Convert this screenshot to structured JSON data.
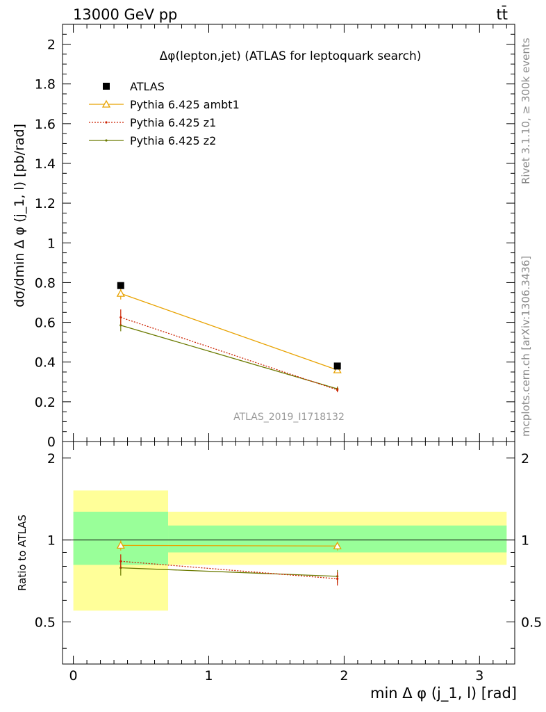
{
  "header": {
    "left": "13000 GeV pp",
    "right": "tt̄"
  },
  "side": {
    "rivet": "Rivet 3.1.10, ≥ 300k events",
    "mcplots": "mcplots.cern.ch [arXiv:1306.3436]"
  },
  "colors": {
    "atlas": "#000000",
    "ambt1": "#e8a200",
    "z1": "#cc2200",
    "z2": "#6b7a00",
    "band_inner": "#99ff99",
    "band_outer": "#ffff99"
  },
  "chart_data": [
    {
      "type": "scatter",
      "title": "Δφ(lepton,jet) (ATLAS for leptoquark search)",
      "ylabel": "dσ/dmin Δ φ (j_1, l) [pb/rad]",
      "watermark": "ATLAS_2019_I1718132",
      "xlim": [
        -0.08,
        3.26
      ],
      "ylim": [
        0,
        2.1
      ],
      "yticks": [
        0.2,
        0.4,
        0.6,
        0.8,
        1,
        1.2,
        1.4,
        1.6,
        1.8,
        2
      ],
      "ytick_labels": [
        "0.2",
        "0.4",
        "0.6",
        "0.8",
        "1",
        "1.2",
        "1.4",
        "1.6",
        "1.8",
        "2"
      ],
      "bottom_label": "0",
      "legend_position": "top-left",
      "series": [
        {
          "name": "ATLAS",
          "style": "data",
          "x": [
            0.35,
            1.95
          ],
          "y": [
            0.785,
            0.38
          ],
          "err": [
            0.012,
            0.008
          ]
        },
        {
          "name": "Pythia 6.425 ambt1",
          "style": "ambt1",
          "x": [
            0.35,
            1.95
          ],
          "y": [
            0.745,
            0.36
          ],
          "err": [
            0.03,
            0.012
          ]
        },
        {
          "name": "Pythia 6.425 z1",
          "style": "z1",
          "x": [
            0.35,
            1.95
          ],
          "y": [
            0.625,
            0.26
          ],
          "err": [
            0.04,
            0.012
          ]
        },
        {
          "name": "Pythia 6.425 z2",
          "style": "z2",
          "x": [
            0.35,
            1.95
          ],
          "y": [
            0.585,
            0.265
          ],
          "err": [
            0.03,
            0.012
          ]
        }
      ]
    },
    {
      "type": "scatter",
      "ylabel": "Ratio to ATLAS",
      "xlabel": "min Δ φ (j_1, l) [rad]",
      "xlim": [
        -0.08,
        3.26
      ],
      "ylim": [
        0.35,
        2.3
      ],
      "ylog": true,
      "xticks": [
        0,
        1,
        2,
        3
      ],
      "xtick_labels": [
        "0",
        "1",
        "2",
        "3"
      ],
      "yticks": [
        0.5,
        1,
        2
      ],
      "ytick_labels": [
        "0.5",
        "1",
        "2"
      ],
      "bands": [
        {
          "x0": 0,
          "x1": 0.7,
          "outer": [
            0.55,
            1.52
          ],
          "inner": [
            0.81,
            1.27
          ]
        },
        {
          "x0": 0.7,
          "x1": 3.2,
          "outer": [
            0.81,
            1.27
          ],
          "inner": [
            0.9,
            1.13
          ]
        }
      ],
      "series": [
        {
          "name": "Pythia 6.425 ambt1",
          "style": "ambt1",
          "x": [
            0.35,
            1.95
          ],
          "y": [
            0.955,
            0.95
          ],
          "err": [
            0.04,
            0.035
          ]
        },
        {
          "name": "Pythia 6.425 z1",
          "style": "z1",
          "x": [
            0.35,
            1.95
          ],
          "y": [
            0.835,
            0.72
          ],
          "err": [
            0.05,
            0.04
          ]
        },
        {
          "name": "Pythia 6.425 z2",
          "style": "z2",
          "x": [
            0.35,
            1.95
          ],
          "y": [
            0.79,
            0.735
          ],
          "err": [
            0.05,
            0.04
          ]
        }
      ]
    }
  ]
}
